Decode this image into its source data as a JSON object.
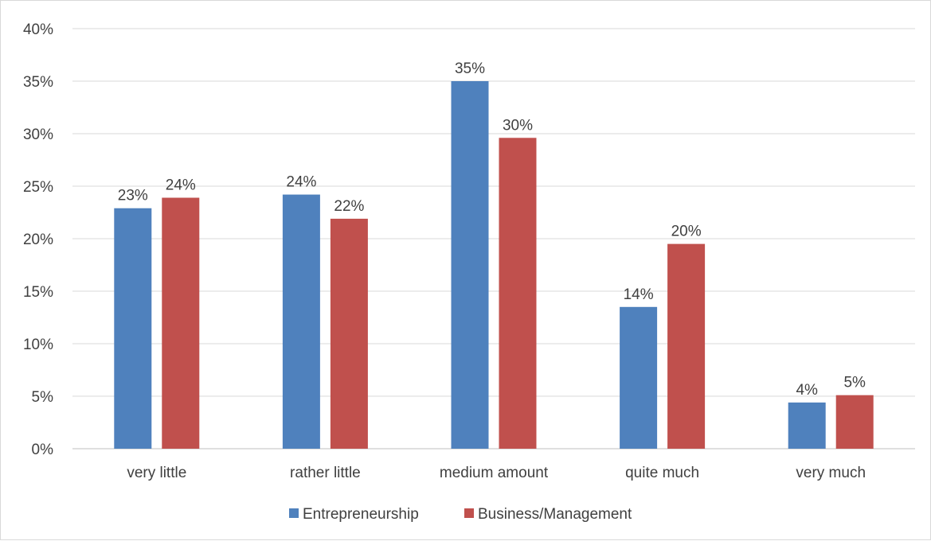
{
  "chart_data": {
    "type": "bar",
    "categories": [
      "very little",
      "rather little",
      "medium amount",
      "quite much",
      "very much"
    ],
    "series": [
      {
        "name": "Entrepreneurship",
        "color": "#4f81bd",
        "values": [
          22.9,
          24.2,
          35.0,
          13.5,
          4.4
        ],
        "labels": [
          "23%",
          "24%",
          "35%",
          "14%",
          "4%"
        ]
      },
      {
        "name": "Business/Management",
        "color": "#c0504d",
        "values": [
          23.9,
          21.9,
          29.6,
          19.5,
          5.1
        ],
        "labels": [
          "24%",
          "22%",
          "30%",
          "20%",
          "5%"
        ]
      }
    ],
    "ylim": [
      0,
      40
    ],
    "y_ticks": [
      {
        "value": 0,
        "label": "0%"
      },
      {
        "value": 5,
        "label": "5%"
      },
      {
        "value": 10,
        "label": "10%"
      },
      {
        "value": 15,
        "label": "15%"
      },
      {
        "value": 20,
        "label": "20%"
      },
      {
        "value": 25,
        "label": "25%"
      },
      {
        "value": 30,
        "label": "30%"
      },
      {
        "value": 35,
        "label": "35%"
      },
      {
        "value": 40,
        "label": "40%"
      }
    ],
    "grid": true,
    "legend": "bottom",
    "title": "",
    "xlabel": "",
    "ylabel": ""
  }
}
